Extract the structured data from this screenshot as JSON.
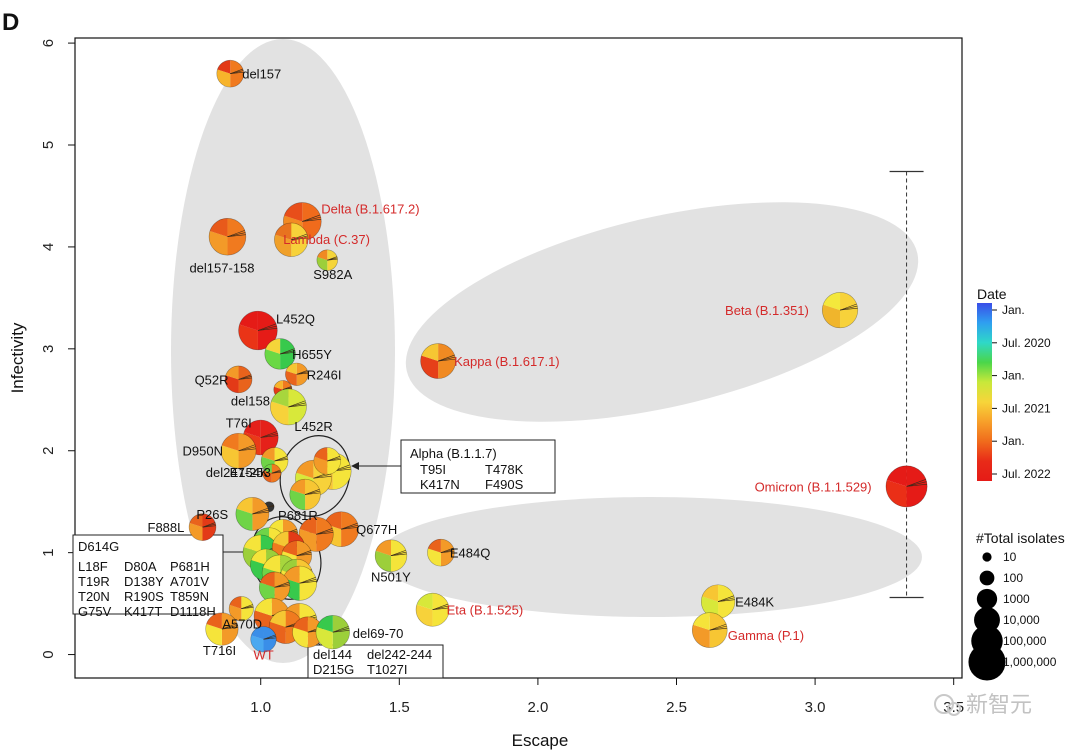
{
  "panel_label": "D",
  "watermark": "新智元",
  "chart_data": {
    "type": "scatter",
    "title": "",
    "xlabel": "Escape",
    "ylabel": "Infectivity",
    "xlim": [
      0.33,
      3.53
    ],
    "ylim": [
      -0.23,
      6.05
    ],
    "xticks": [
      {
        "value": 1.0,
        "label": "1.0"
      },
      {
        "value": 1.5,
        "label": "1.5"
      },
      {
        "value": 2.0,
        "label": "2.0"
      },
      {
        "value": 2.5,
        "label": "2.5"
      },
      {
        "value": 3.0,
        "label": "3.0"
      },
      {
        "value": 3.5,
        "label": "3.5"
      }
    ],
    "yticks": [
      {
        "value": 0,
        "label": "0"
      },
      {
        "value": 1,
        "label": "1"
      },
      {
        "value": 2,
        "label": "2"
      },
      {
        "value": 3,
        "label": "3"
      },
      {
        "value": 4,
        "label": "4"
      },
      {
        "value": 5,
        "label": "5"
      },
      {
        "value": 6,
        "label": "6"
      }
    ],
    "points": [
      {
        "name": "del157",
        "x": 0.89,
        "y": 5.7,
        "isolates": 5000,
        "label": "del157",
        "voc": false,
        "colors": [
          "#f07a1f",
          "#f7b42b",
          "#e33a17"
        ]
      },
      {
        "name": "delta",
        "x": 1.15,
        "y": 4.25,
        "isolates": 300000,
        "label": "Delta (B.1.617.2)",
        "voc": true,
        "colors": [
          "#f06b1c",
          "#f28a23",
          "#e84e1a"
        ]
      },
      {
        "name": "del157-158",
        "x": 0.88,
        "y": 4.1,
        "isolates": 200000,
        "label": "del157-158",
        "voc": false,
        "colors": [
          "#f07a1f",
          "#f39a28",
          "#e85a1b"
        ]
      },
      {
        "name": "lambda",
        "x": 1.11,
        "y": 4.07,
        "isolates": 60000,
        "label": "Lambda (C.37)",
        "voc": true,
        "colors": [
          "#f7d23a",
          "#f0a02a",
          "#e8731f"
        ]
      },
      {
        "name": "S982A",
        "x": 1.24,
        "y": 3.87,
        "isolates": 500,
        "label": "S982A",
        "voc": false,
        "colors": [
          "#f5d53a",
          "#9ccf3a",
          "#f08a22"
        ]
      },
      {
        "name": "beta",
        "x": 3.09,
        "y": 3.38,
        "isolates": 120000,
        "label": "Beta (B.1.351)",
        "voc": true,
        "colors": [
          "#f7d23a",
          "#f0b52c",
          "#f4e83c"
        ]
      },
      {
        "name": "L452Q",
        "x": 0.99,
        "y": 3.18,
        "isolates": 400000,
        "label": "L452Q",
        "voc": false,
        "colors": [
          "#e51b17",
          "#ea3417",
          "#e51b17"
        ]
      },
      {
        "name": "H655Y",
        "x": 1.07,
        "y": 2.95,
        "isolates": 20000,
        "label": "H655Y",
        "voc": false,
        "colors": [
          "#38c94c",
          "#6ad845",
          "#f5d53a"
        ]
      },
      {
        "name": "kappa",
        "x": 1.64,
        "y": 2.88,
        "isolates": 100000,
        "label": "Kappa (B.1.617.1)",
        "voc": true,
        "colors": [
          "#f08a22",
          "#e63f19",
          "#f6c633"
        ]
      },
      {
        "name": "R246I",
        "x": 1.13,
        "y": 2.75,
        "isolates": 1000,
        "label": "R246I",
        "voc": false,
        "colors": [
          "#f39a28",
          "#e9631c",
          "#f5c733"
        ]
      },
      {
        "name": "Q52R",
        "x": 0.92,
        "y": 2.7,
        "isolates": 5000,
        "label": "Q52R",
        "voc": false,
        "colors": [
          "#e9631c",
          "#e33a17",
          "#f39a28"
        ]
      },
      {
        "name": "del158",
        "x": 1.08,
        "y": 2.6,
        "isolates": 200,
        "label": "del158",
        "voc": false,
        "colors": [
          "#f07a1f",
          "#e33a17",
          "#f7b42b"
        ]
      },
      {
        "name": "L452R",
        "x": 1.1,
        "y": 2.43,
        "isolates": 150000,
        "label": "L452R",
        "voc": false,
        "colors": [
          "#d8e83a",
          "#f7d23a",
          "#a7d63d"
        ]
      },
      {
        "name": "T76I",
        "x": 1.0,
        "y": 2.13,
        "isolates": 100000,
        "label": "T76I",
        "voc": false,
        "colors": [
          "#e5211a",
          "#ea3a18",
          "#e5211a"
        ]
      },
      {
        "name": "D950N",
        "x": 0.92,
        "y": 2.0,
        "isolates": 100000,
        "label": "D950N",
        "voc": false,
        "colors": [
          "#f39a28",
          "#f7c633",
          "#f07a1f"
        ]
      },
      {
        "name": "E154K",
        "x": 1.05,
        "y": 1.9,
        "isolates": 5000,
        "label": "E154K",
        "voc": false,
        "colors": [
          "#f5e43a",
          "#6fd447",
          "#f39a28"
        ]
      },
      {
        "name": "del247-253",
        "x": 1.04,
        "y": 1.78,
        "isolates": 200,
        "label": "del247-253",
        "voc": false,
        "colors": [
          "#f07a1f",
          "#e9631c"
        ]
      },
      {
        "name": "alpha1",
        "x": 1.26,
        "y": 1.8,
        "isolates": 200000,
        "label": "",
        "voc": false,
        "colors": [
          "#f5e43a",
          "#f7c633",
          "#f39a28"
        ]
      },
      {
        "name": "alpha2",
        "x": 1.19,
        "y": 1.73,
        "isolates": 150000,
        "label": "",
        "voc": false,
        "colors": [
          "#f7d23a",
          "#d8e83a",
          "#f39a28"
        ]
      },
      {
        "name": "alpha3",
        "x": 1.24,
        "y": 1.9,
        "isolates": 5000,
        "label": "",
        "voc": false,
        "colors": [
          "#f5e43a",
          "#f39a28",
          "#e9631c"
        ]
      },
      {
        "name": "alpha4",
        "x": 1.16,
        "y": 1.57,
        "isolates": 20000,
        "label": "",
        "voc": false,
        "colors": [
          "#f7c633",
          "#6fd447",
          "#f39a28"
        ]
      },
      {
        "name": "P681R",
        "x": 1.03,
        "y": 1.45,
        "isolates": 10,
        "label": "P681R",
        "voc": false,
        "colors": [
          "#333333"
        ]
      },
      {
        "name": "omicron",
        "x": 3.33,
        "y": 1.65,
        "isolates": 1000000,
        "label": "Omicron (B.1.1.529)",
        "voc": true,
        "colors": [
          "#e51b17",
          "#ea2f17",
          "#e51b17"
        ]
      },
      {
        "name": "P26S",
        "x": 0.97,
        "y": 1.38,
        "isolates": 50000,
        "label": "P26S",
        "voc": false,
        "colors": [
          "#f39a28",
          "#6fd447",
          "#f7c633"
        ]
      },
      {
        "name": "F888L",
        "x": 0.79,
        "y": 1.25,
        "isolates": 5000,
        "label": "F888L",
        "voc": false,
        "colors": [
          "#e33a17",
          "#f39a28",
          "#e9631c"
        ]
      },
      {
        "name": "Q677H",
        "x": 1.29,
        "y": 1.23,
        "isolates": 100000,
        "label": "Q677H",
        "voc": false,
        "colors": [
          "#f07a1f",
          "#f7c633",
          "#e9631c"
        ]
      },
      {
        "name": "p1",
        "x": 1.2,
        "y": 1.18,
        "isolates": 80000,
        "label": "",
        "voc": false,
        "colors": [
          "#f07a1f",
          "#f39a28",
          "#e9631c"
        ]
      },
      {
        "name": "p2",
        "x": 1.08,
        "y": 1.18,
        "isolates": 15000,
        "label": "",
        "voc": false,
        "colors": [
          "#f39a28",
          "#e9631c",
          "#f5e43a"
        ]
      },
      {
        "name": "p3",
        "x": 1.03,
        "y": 1.08,
        "isolates": 60000,
        "label": "",
        "voc": false,
        "colors": [
          "#f5e43a",
          "#f7c633",
          "#6fd447"
        ]
      },
      {
        "name": "p4",
        "x": 1.0,
        "y": 1.0,
        "isolates": 120000,
        "label": "",
        "voc": false,
        "colors": [
          "#38c94c",
          "#9ccf3a",
          "#f5e43a"
        ]
      },
      {
        "name": "p5",
        "x": 1.1,
        "y": 1.05,
        "isolates": 40000,
        "label": "",
        "voc": false,
        "colors": [
          "#e33a17",
          "#f07a1f",
          "#f5c733"
        ]
      },
      {
        "name": "p6",
        "x": 1.13,
        "y": 0.97,
        "isolates": 15000,
        "label": "",
        "voc": false,
        "colors": [
          "#f39a28",
          "#f5e43a",
          "#e9631c"
        ]
      },
      {
        "name": "p7",
        "x": 1.02,
        "y": 0.88,
        "isolates": 30000,
        "label": "",
        "voc": false,
        "colors": [
          "#9ccf3a",
          "#38c94c",
          "#f5e43a"
        ]
      },
      {
        "name": "p8",
        "x": 1.07,
        "y": 0.8,
        "isolates": 150000,
        "label": "",
        "voc": false,
        "colors": [
          "#a7d63d",
          "#6fd447",
          "#f5e43a"
        ]
      },
      {
        "name": "p9",
        "x": 1.13,
        "y": 0.78,
        "isolates": 30000,
        "label": "",
        "voc": false,
        "colors": [
          "#f7c633",
          "#f5e43a",
          "#9ccf3a"
        ]
      },
      {
        "name": "p10",
        "x": 1.14,
        "y": 0.7,
        "isolates": 80000,
        "label": "",
        "voc": false,
        "colors": [
          "#f5e43a",
          "#38c94c",
          "#f39a28"
        ]
      },
      {
        "name": "p11",
        "x": 1.05,
        "y": 0.66,
        "isolates": 20000,
        "label": "",
        "voc": false,
        "colors": [
          "#f39a28",
          "#6fd447",
          "#e9631c"
        ]
      },
      {
        "name": "N501Y",
        "x": 1.47,
        "y": 0.97,
        "isolates": 30000,
        "label": "N501Y",
        "voc": false,
        "colors": [
          "#f5e43a",
          "#9ccf3a",
          "#f39a28"
        ]
      },
      {
        "name": "E484Q",
        "x": 1.65,
        "y": 1.0,
        "isolates": 5000,
        "label": "E484Q",
        "voc": false,
        "colors": [
          "#f39a28",
          "#f5e43a",
          "#e9631c"
        ]
      },
      {
        "name": "A570D",
        "x": 0.93,
        "y": 0.45,
        "isolates": 2000,
        "label": "A570D",
        "voc": false,
        "colors": [
          "#f5e43a",
          "#f39a28",
          "#e9631c"
        ]
      },
      {
        "name": "q1",
        "x": 1.04,
        "y": 0.38,
        "isolates": 120000,
        "label": "",
        "voc": false,
        "colors": [
          "#f39a28",
          "#e9631c",
          "#f5e43a"
        ]
      },
      {
        "name": "q2",
        "x": 1.14,
        "y": 0.33,
        "isolates": 100000,
        "label": "",
        "voc": false,
        "colors": [
          "#f5e43a",
          "#f7c633",
          "#f39a28"
        ]
      },
      {
        "name": "q3",
        "x": 1.09,
        "y": 0.27,
        "isolates": 50000,
        "label": "",
        "voc": false,
        "colors": [
          "#f07a1f",
          "#e9631c",
          "#f5c733"
        ]
      },
      {
        "name": "q4",
        "x": 1.17,
        "y": 0.22,
        "isolates": 20000,
        "label": "",
        "voc": false,
        "colors": [
          "#f39a28",
          "#f5e43a",
          "#e9631c"
        ]
      },
      {
        "name": "del69-70",
        "x": 1.26,
        "y": 0.22,
        "isolates": 60000,
        "label": "del69-70",
        "voc": false,
        "colors": [
          "#9ccf3a",
          "#d8e83a",
          "#38c94c"
        ]
      },
      {
        "name": "eta",
        "x": 1.62,
        "y": 0.44,
        "isolates": 50000,
        "label": "Eta (B.1.525)",
        "voc": true,
        "colors": [
          "#f5e43a",
          "#f7d23a",
          "#d8e83a"
        ]
      },
      {
        "name": "E484K",
        "x": 2.65,
        "y": 0.52,
        "isolates": 60000,
        "label": "E484K",
        "voc": false,
        "colors": [
          "#f5e43a",
          "#d8e83a",
          "#f7c633"
        ]
      },
      {
        "name": "gamma",
        "x": 2.62,
        "y": 0.24,
        "isolates": 100000,
        "label": "Gamma (P.1)",
        "voc": true,
        "colors": [
          "#f7c633",
          "#f39a28",
          "#f5e43a"
        ]
      },
      {
        "name": "T716I",
        "x": 0.86,
        "y": 0.25,
        "isolates": 40000,
        "label": "T716I",
        "voc": false,
        "colors": [
          "#f39a28",
          "#f5e43a",
          "#e9631c"
        ]
      },
      {
        "name": "WT",
        "x": 1.01,
        "y": 0.15,
        "isolates": 3000,
        "label": "WT",
        "voc": true,
        "colors": [
          "#3a8ee8",
          "#4aa8f0",
          "#3a8ee8"
        ]
      }
    ],
    "annotations": {
      "alpha": {
        "title": "Alpha (B.1.1.7)",
        "lines": [
          [
            "T95I",
            "T478K"
          ],
          [
            "K417N",
            "F490S"
          ]
        ]
      },
      "d614g": {
        "title": "D614G",
        "lines": [
          [
            "L18F",
            "D80A",
            "P681H"
          ],
          [
            "T19R",
            "D138Y",
            "A701V"
          ],
          [
            "T20N",
            "R190S",
            "T859N"
          ],
          [
            "G75V",
            "K417T",
            "D1118H"
          ]
        ]
      },
      "del144": {
        "lines": [
          [
            "del144",
            "del242-244"
          ],
          [
            "D215G",
            "T1027I"
          ]
        ]
      }
    },
    "omicron_errorbar": {
      "x": 3.33,
      "ymin": 0.56,
      "ymax": 4.74
    },
    "legend": {
      "date_title": "Date",
      "date_ticks": [
        "Jan.",
        "Jul.  2020",
        "Jan.",
        "Jul.  2021",
        "Jan.",
        "Jul.  2022"
      ],
      "date_colors": [
        "#3a4ee8",
        "#2f9ff0",
        "#2fd8c8",
        "#4ad64a",
        "#c8e83a",
        "#f7d53a",
        "#f7a02a",
        "#f06b1c",
        "#e82b18",
        "#e51b17"
      ],
      "size_title": "#Total isolates",
      "size_entries": [
        {
          "label": "10",
          "value": 10
        },
        {
          "label": "100",
          "value": 100
        },
        {
          "label": "1000",
          "value": 1000
        },
        {
          "label": "10,000",
          "value": 10000
        },
        {
          "label": "100,000",
          "value": 100000
        },
        {
          "label": "1,000,000",
          "value": 1000000
        }
      ]
    },
    "colors": {
      "voc_label": "#d42a2a",
      "axis": "#111111",
      "cluster_fill": "#e2e2e2",
      "text": "#111111"
    }
  }
}
